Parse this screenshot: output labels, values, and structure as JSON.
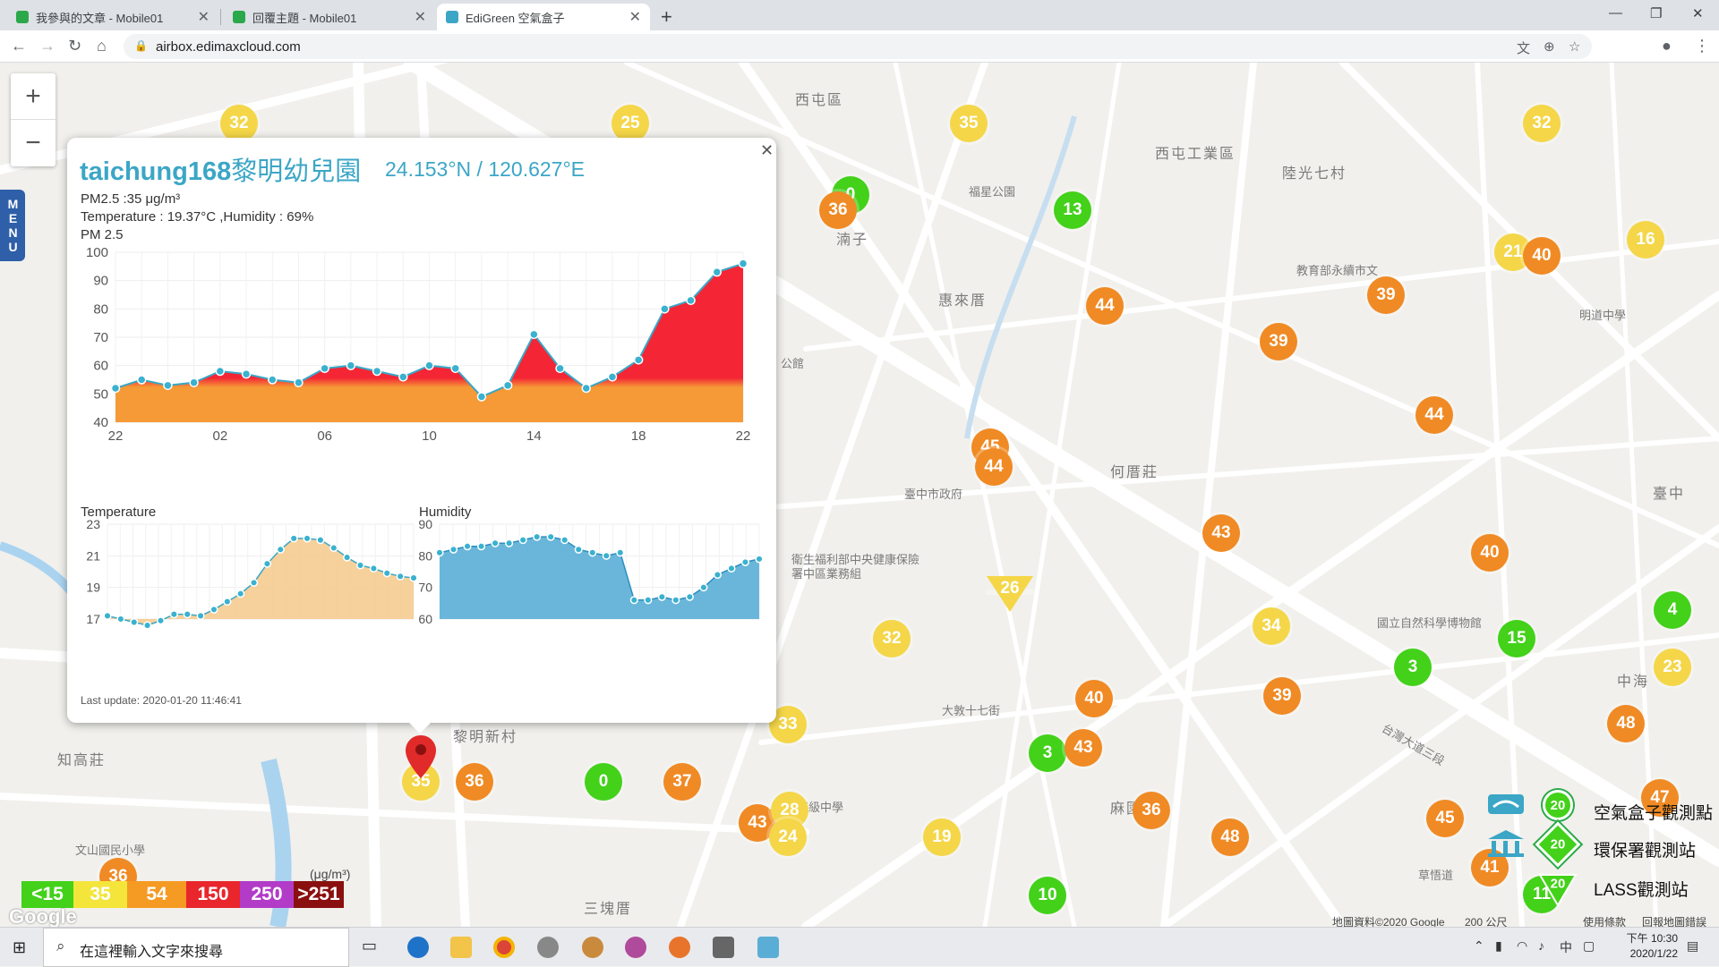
{
  "browser": {
    "tabs": [
      {
        "title": "我參與的文章 - Mobile01",
        "active": false,
        "fav_color": "#2aa84a"
      },
      {
        "title": "回覆主題 - Mobile01",
        "active": false,
        "fav_color": "#2aa84a"
      },
      {
        "title": "EdiGreen 空氣盒子",
        "active": true,
        "fav_color": "#3ba6c6"
      }
    ],
    "url": "airbox.edimaxcloud.com"
  },
  "map": {
    "menu_label": "MENU",
    "labels": [
      {
        "text": "西屯區"
      },
      {
        "text": "西屯工業區"
      },
      {
        "text": "陸光七村"
      },
      {
        "text": "惠來厝"
      },
      {
        "text": "何厝莊"
      },
      {
        "text": "黎明新村"
      },
      {
        "text": "知高莊"
      },
      {
        "text": "三塊厝"
      },
      {
        "text": "麻園頭"
      },
      {
        "text": "臺中"
      },
      {
        "text": "福星公園"
      },
      {
        "text": "臺中市政府"
      },
      {
        "text": "衛生福利部中央健康保險署中區業務組"
      },
      {
        "text": "國立自然科學博物館"
      },
      {
        "text": "教育部永續市文"
      },
      {
        "text": "惠文高級中學"
      },
      {
        "text": "文山國民小學"
      },
      {
        "text": "湳子"
      },
      {
        "text": "中海"
      },
      {
        "text": "台灣大道三段"
      },
      {
        "text": "公館"
      },
      {
        "text": "大敦十七街"
      },
      {
        "text": "草悟道"
      },
      {
        "text": "明道中學"
      }
    ],
    "markers": [
      {
        "value": "32",
        "level": "yellow"
      },
      {
        "value": "25",
        "level": "yellow"
      },
      {
        "value": "35",
        "level": "yellow"
      },
      {
        "value": "32",
        "level": "yellow"
      },
      {
        "value": "0",
        "level": "green"
      },
      {
        "value": "36",
        "level": "orange"
      },
      {
        "value": "13",
        "level": "green"
      },
      {
        "value": "21",
        "level": "yellow"
      },
      {
        "value": "40",
        "level": "orange"
      },
      {
        "value": "16",
        "level": "yellow"
      },
      {
        "value": "39",
        "level": "orange"
      },
      {
        "value": "44",
        "level": "orange"
      },
      {
        "value": "39",
        "level": "orange"
      },
      {
        "value": "44",
        "level": "orange"
      },
      {
        "value": "45",
        "level": "orange"
      },
      {
        "value": "44",
        "level": "orange"
      },
      {
        "value": "43",
        "level": "orange"
      },
      {
        "value": "40",
        "level": "orange"
      },
      {
        "value": "26",
        "level": "yellow"
      },
      {
        "value": "34",
        "level": "yellow"
      },
      {
        "value": "4",
        "level": "green"
      },
      {
        "value": "15",
        "level": "green"
      },
      {
        "value": "3",
        "level": "green"
      },
      {
        "value": "23",
        "level": "yellow"
      },
      {
        "value": "32",
        "level": "yellow"
      },
      {
        "value": "40",
        "level": "orange"
      },
      {
        "value": "39",
        "level": "orange"
      },
      {
        "value": "48",
        "level": "orange"
      },
      {
        "value": "3",
        "level": "green"
      },
      {
        "value": "43",
        "level": "orange"
      },
      {
        "value": "33",
        "level": "yellow"
      },
      {
        "value": "35",
        "level": "yellow"
      },
      {
        "value": "36",
        "level": "orange"
      },
      {
        "value": "0",
        "level": "green"
      },
      {
        "value": "37",
        "level": "orange"
      },
      {
        "value": "43",
        "level": "orange"
      },
      {
        "value": "28",
        "level": "yellow"
      },
      {
        "value": "24",
        "level": "yellow"
      },
      {
        "value": "19",
        "level": "yellow"
      },
      {
        "value": "36",
        "level": "orange"
      },
      {
        "value": "48",
        "level": "orange"
      },
      {
        "value": "45",
        "level": "orange"
      },
      {
        "value": "47",
        "level": "orange"
      },
      {
        "value": "41",
        "level": "orange"
      },
      {
        "value": "10",
        "level": "green"
      },
      {
        "value": "36",
        "level": "orange"
      },
      {
        "value": "11",
        "level": "green"
      }
    ],
    "legend": {
      "unit": "(μg/m³)",
      "levels": [
        {
          "label": "<15",
          "color": "#43d11a"
        },
        {
          "label": "35",
          "color": "#f4e53a"
        },
        {
          "label": "54",
          "color": "#f59a23"
        },
        {
          "label": "150",
          "color": "#e8262c"
        },
        {
          "label": "250",
          "color": "#b23bc8"
        },
        {
          "label": ">251",
          "color": "#8a1010"
        }
      ]
    },
    "stations": [
      {
        "label": "空氣盒子觀測點",
        "badge": "20"
      },
      {
        "label": "環保署觀測站",
        "badge": "20"
      },
      {
        "label": "LASS觀測站",
        "badge": "20"
      }
    ],
    "attribution": {
      "data": "地圖資料©2020 Google",
      "scale": "200 公尺",
      "terms": "使用條款",
      "report": "回報地圖錯誤"
    },
    "google": "Google"
  },
  "popup": {
    "device": "taichung168",
    "name": "黎明幼兒園",
    "coords": "24.153°N / 120.627°E",
    "pm25_line": "PM2.5 :35 μg/m³",
    "temp_line": "Temperature : 19.37°C ,Humidity : 69%",
    "chart_title": "PM 2.5",
    "temperature_label": "Temperature",
    "humidity_label": "Humidity",
    "last_update": "Last update: 2020-01-20 11:46:41"
  },
  "chart_data": [
    {
      "type": "area",
      "title": "PM 2.5",
      "x": [
        "22",
        "23",
        "00",
        "01",
        "02",
        "03",
        "04",
        "05",
        "06",
        "07",
        "08",
        "09",
        "10",
        "11",
        "12",
        "13",
        "14",
        "15",
        "16",
        "17",
        "18",
        "19",
        "20",
        "21",
        "22"
      ],
      "xticks": [
        "22",
        "02",
        "06",
        "10",
        "14",
        "18",
        "22"
      ],
      "ylim": [
        40,
        100
      ],
      "yticks": [
        40,
        50,
        60,
        70,
        80,
        90,
        100
      ],
      "values": [
        52,
        55,
        53,
        54,
        58,
        57,
        55,
        54,
        59,
        60,
        58,
        56,
        60,
        59,
        49,
        53,
        71,
        59,
        52,
        56,
        62,
        80,
        83,
        93,
        96
      ],
      "fill_colors": {
        "high": "#f42535",
        "low": "#f59a36"
      }
    },
    {
      "type": "area",
      "title": "Temperature",
      "ylim": [
        17,
        23
      ],
      "yticks": [
        17,
        19,
        21,
        23
      ],
      "values": [
        17.2,
        17.0,
        16.8,
        16.6,
        16.9,
        17.3,
        17.3,
        17.2,
        17.6,
        18.1,
        18.6,
        19.3,
        20.5,
        21.4,
        22.1,
        22.1,
        22.0,
        21.5,
        20.9,
        20.4,
        20.2,
        19.9,
        19.7,
        19.6
      ],
      "color": "#f4b96a"
    },
    {
      "type": "area",
      "title": "Humidity",
      "ylim": [
        60,
        90
      ],
      "yticks": [
        60,
        70,
        80,
        90
      ],
      "values": [
        81,
        82,
        83,
        83,
        84,
        84,
        85,
        86,
        86,
        85,
        82,
        81,
        80,
        81,
        66,
        66,
        67,
        66,
        67,
        70,
        74,
        76,
        78,
        79
      ],
      "color": "#5aaed6"
    }
  ],
  "taskbar": {
    "search_placeholder": "在這裡輸入文字來搜尋",
    "time": "下午 10:30",
    "date": "2020/1/22",
    "ime": "中"
  }
}
